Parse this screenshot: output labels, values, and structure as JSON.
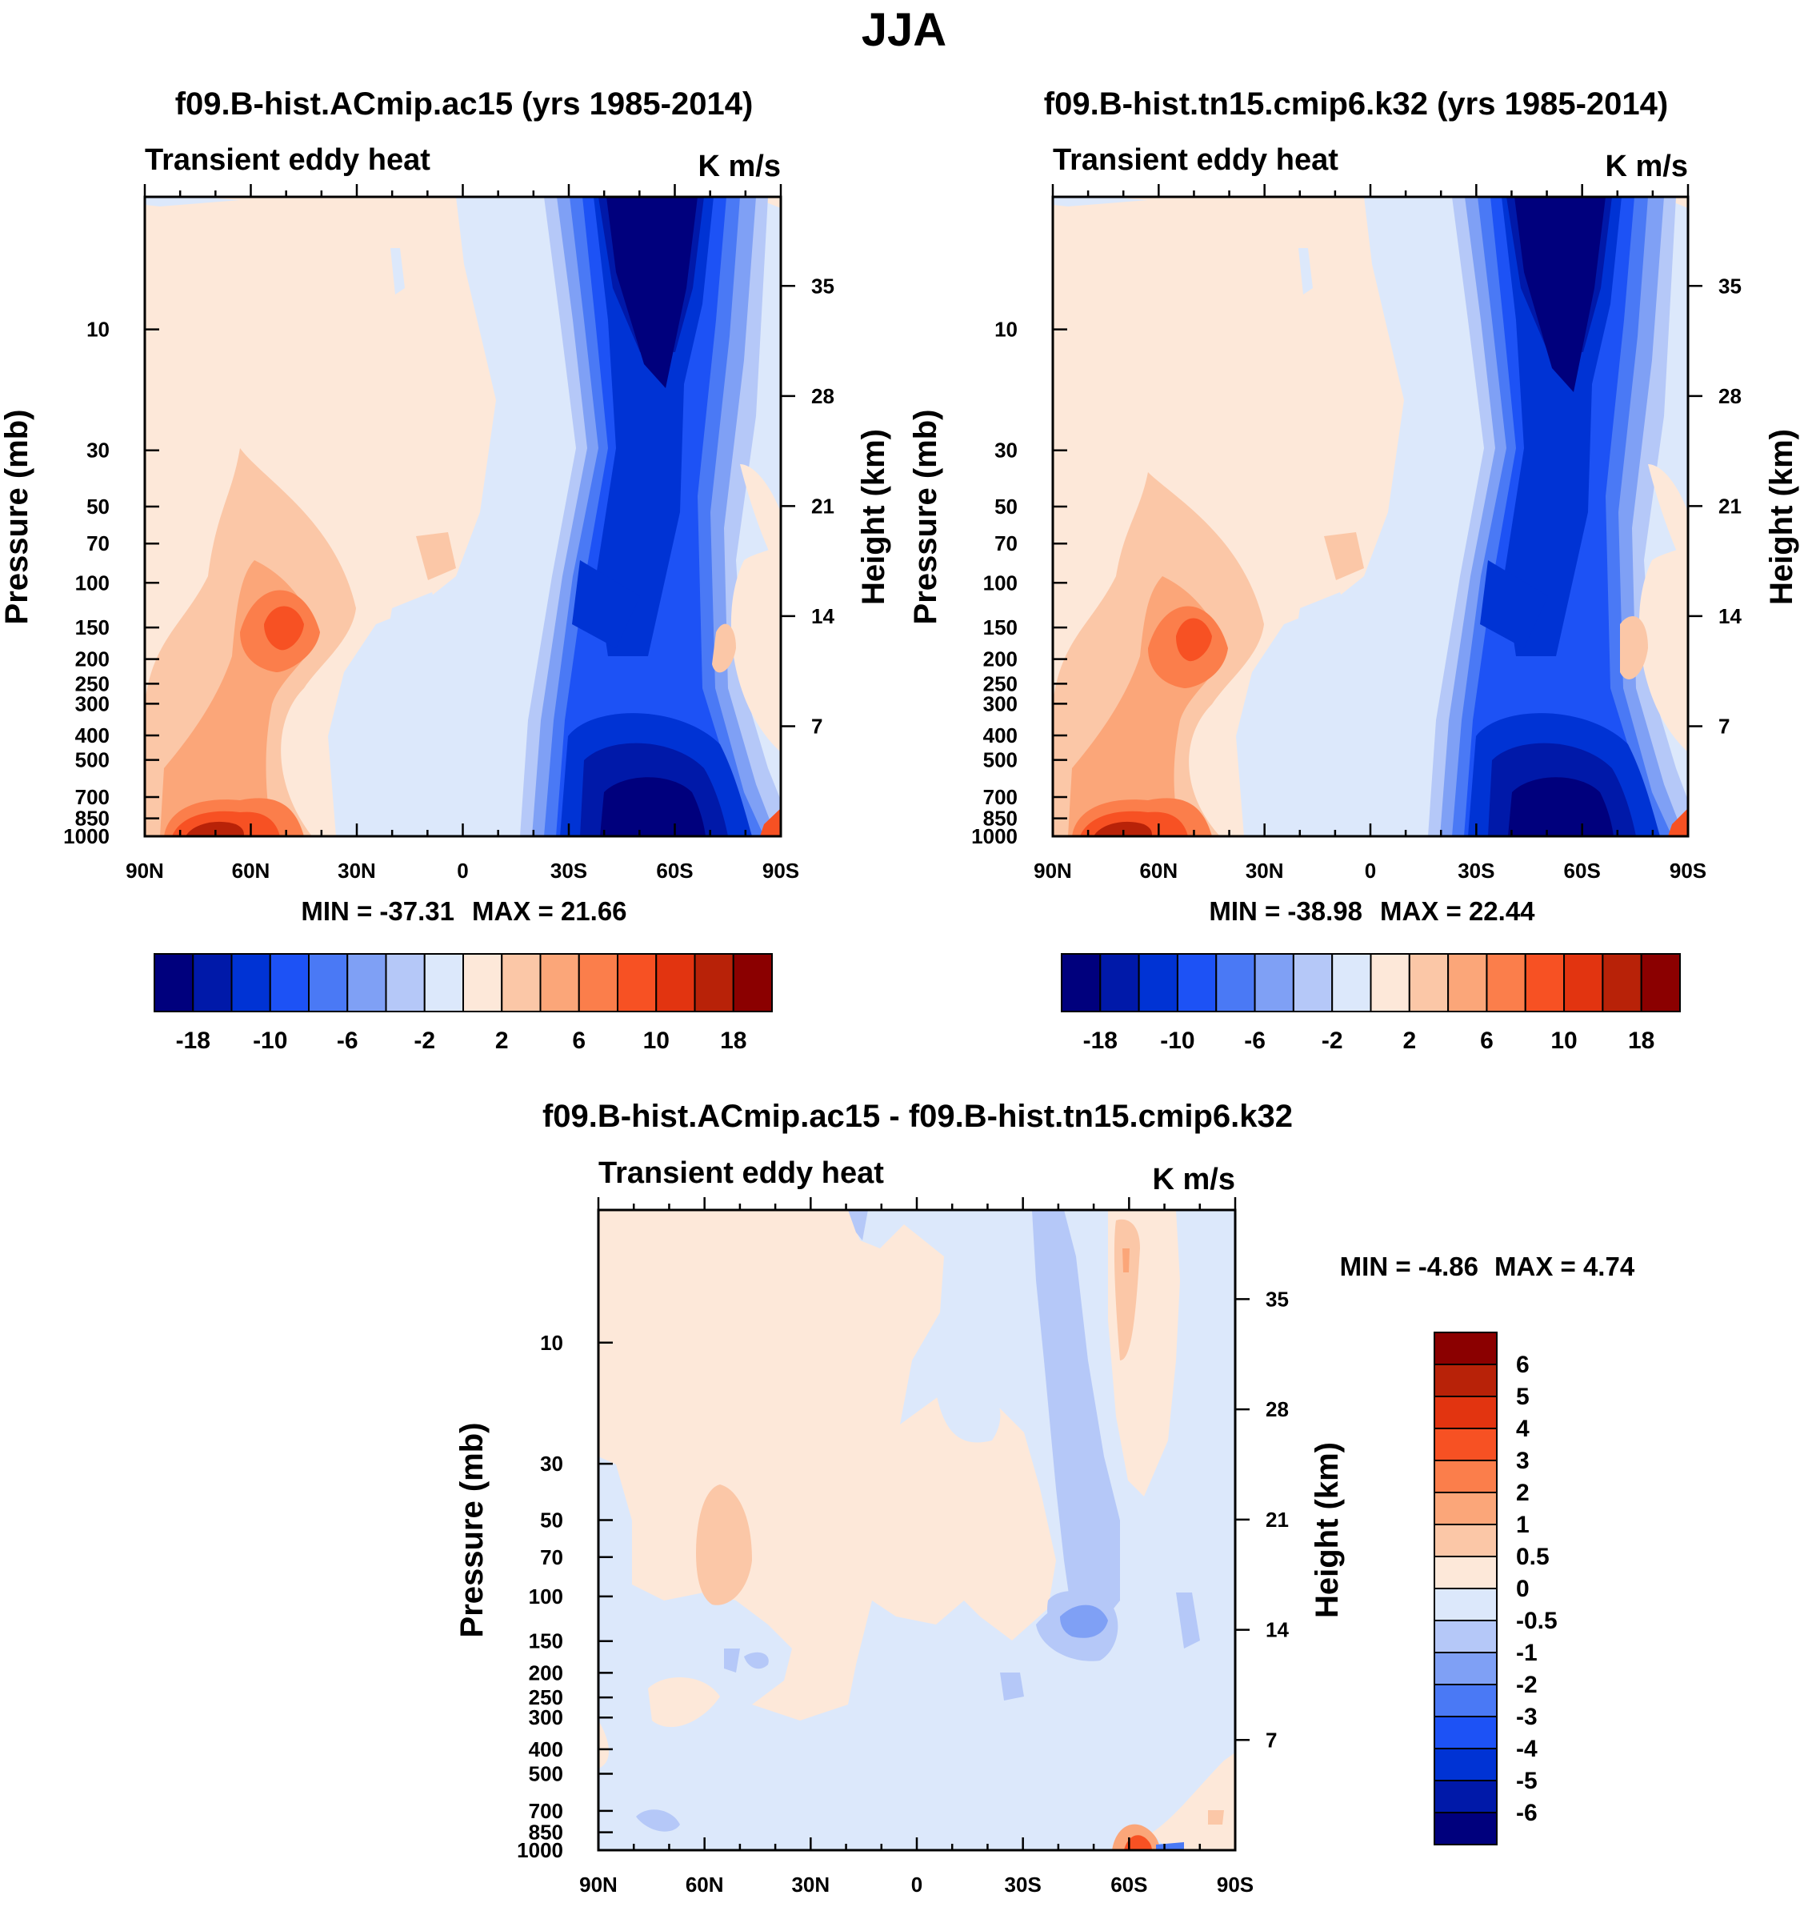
{
  "title": "JJA",
  "chart_data": [
    {
      "type": "heatmap",
      "title": "f09.B-hist.ACmip.ac15 (yrs 1985-2014)",
      "left_label": "Transient eddy heat",
      "right_label": "K m/s",
      "xlabel": "",
      "ylabel": "Pressure (mb)",
      "y2label": "Height (km)",
      "x_ticks": [
        "90N",
        "60N",
        "30N",
        "0",
        "30S",
        "60S",
        "90S"
      ],
      "y_ticks": [
        "10",
        "30",
        "50",
        "70",
        "100",
        "150",
        "200",
        "250",
        "300",
        "400",
        "500",
        "700",
        "850",
        "1000"
      ],
      "y2_ticks": [
        "35",
        "28",
        "21",
        "14",
        "7"
      ],
      "min_label": "MIN = -37.31",
      "max_label": "MAX =  21.66",
      "levels": [
        -18,
        -14,
        -10,
        -8,
        -6,
        -4,
        -2,
        0,
        2,
        4,
        6,
        8,
        10,
        14,
        18
      ],
      "colorbar_labels": [
        "-18",
        "-10",
        "-6",
        "-2",
        "2",
        "6",
        "10",
        "18"
      ],
      "features": [
        {
          "lat": -55,
          "p": 3,
          "value": -37
        },
        {
          "lat": -55,
          "p": 800,
          "value": -35
        },
        {
          "lat": -52,
          "p": 220,
          "value": -15
        },
        {
          "lat": 52,
          "p": 160,
          "value": 12
        },
        {
          "lat": 70,
          "p": 980,
          "value": 21.66
        }
      ]
    },
    {
      "type": "heatmap",
      "title": "f09.B-hist.tn15.cmip6.k32 (yrs 1985-2014)",
      "left_label": "Transient eddy heat",
      "right_label": "K m/s",
      "xlabel": "",
      "ylabel": "Pressure (mb)",
      "y2label": "Height (km)",
      "x_ticks": [
        "90N",
        "60N",
        "30N",
        "0",
        "30S",
        "60S",
        "90S"
      ],
      "y_ticks": [
        "10",
        "30",
        "50",
        "70",
        "100",
        "150",
        "200",
        "250",
        "300",
        "400",
        "500",
        "700",
        "850",
        "1000"
      ],
      "y2_ticks": [
        "35",
        "28",
        "21",
        "14",
        "7"
      ],
      "min_label": "MIN = -38.98",
      "max_label": "MAX =  22.44",
      "levels": [
        -18,
        -14,
        -10,
        -8,
        -6,
        -4,
        -2,
        0,
        2,
        4,
        6,
        8,
        10,
        14,
        18
      ],
      "colorbar_labels": [
        "-18",
        "-10",
        "-6",
        "-2",
        "2",
        "6",
        "10",
        "18"
      ],
      "features": [
        {
          "lat": -57,
          "p": 3,
          "value": -39
        },
        {
          "lat": -55,
          "p": 800,
          "value": -36
        },
        {
          "lat": -52,
          "p": 220,
          "value": -16
        },
        {
          "lat": 52,
          "p": 180,
          "value": 12
        },
        {
          "lat": 70,
          "p": 980,
          "value": 22.44
        }
      ]
    },
    {
      "type": "heatmap",
      "title": "f09.B-hist.ACmip.ac15 - f09.B-hist.tn15.cmip6.k32",
      "left_label": "Transient eddy heat",
      "right_label": "K m/s",
      "xlabel": "",
      "ylabel": "Pressure (mb)",
      "y2label": "Height (km)",
      "x_ticks": [
        "90N",
        "60N",
        "30N",
        "0",
        "30S",
        "60S",
        "90S"
      ],
      "y_ticks": [
        "10",
        "30",
        "50",
        "70",
        "100",
        "150",
        "200",
        "250",
        "300",
        "400",
        "500",
        "700",
        "850",
        "1000"
      ],
      "y2_ticks": [
        "35",
        "28",
        "21",
        "14",
        "7"
      ],
      "min_label": "MIN =  -4.86",
      "max_label": "MAX =    4.74",
      "levels": [
        -6,
        -5,
        -4,
        -3,
        -2,
        -1,
        -0.5,
        0,
        0.5,
        1,
        2,
        3,
        4,
        5,
        6
      ],
      "colorbar_labels": [
        "6",
        "5",
        "4",
        "3",
        "2",
        "1",
        "0.5",
        "0",
        "-0.5",
        "-1",
        "-2",
        "-3",
        "-4",
        "-5",
        "-6"
      ],
      "features": [
        {
          "lat": -60,
          "p": 1000,
          "value": 4.74
        },
        {
          "lat": -53,
          "p": 150,
          "value": -2
        },
        {
          "lat": -60,
          "p": 10,
          "value": 1
        },
        {
          "lat": 60,
          "p": 100,
          "value": 1
        },
        {
          "lat": -65,
          "p": 1000,
          "value": -4.86
        }
      ]
    }
  ],
  "colors": {
    "palette": [
      "#00007d",
      "#0019a9",
      "#0033d4",
      "#1d52f5",
      "#4a79f5",
      "#7fa0f5",
      "#b5c8f8",
      "#dce8fb",
      "#fde8d9",
      "#fbc7a7",
      "#fba679",
      "#fb7e4b",
      "#f75123",
      "#e23410",
      "#b82208",
      "#8b0000"
    ]
  }
}
